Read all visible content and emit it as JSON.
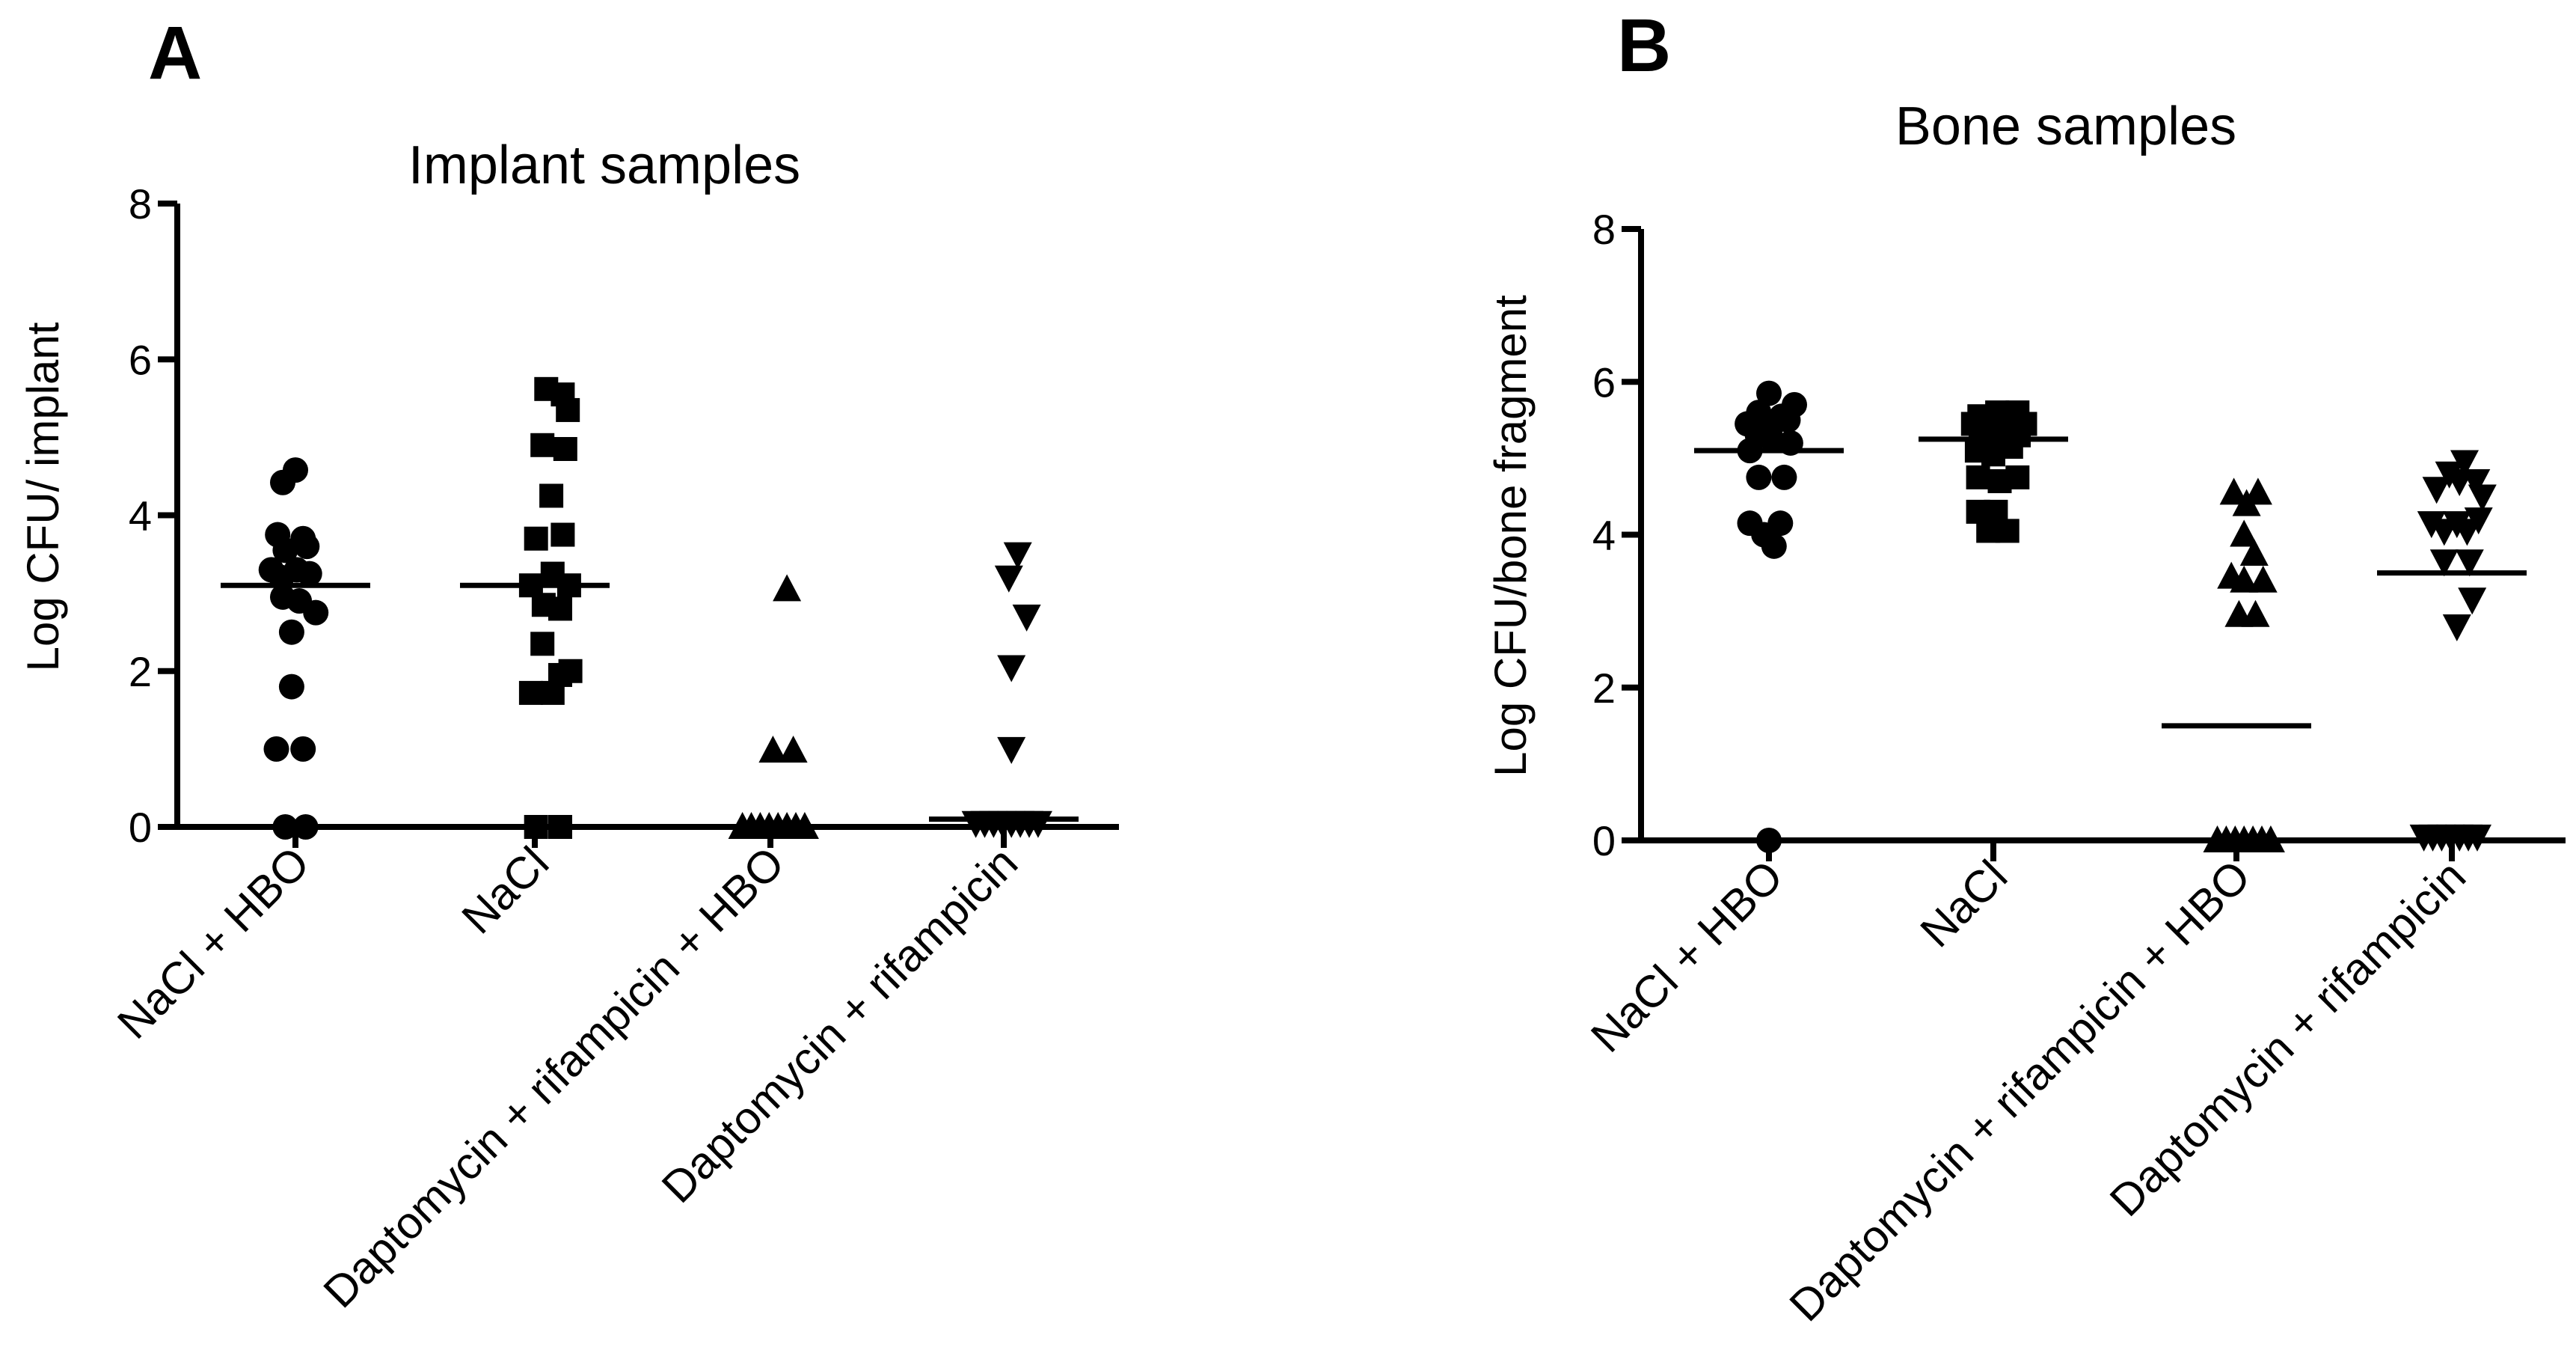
{
  "chart_data": [
    {
      "type": "scatter",
      "panel": "A",
      "title": "Implant samples",
      "xlabel": "",
      "ylabel": "Log CFU/ implant",
      "ylim": [
        0,
        8
      ],
      "yticks": [
        0,
        2,
        4,
        6,
        8
      ],
      "grid": false,
      "categories": [
        "NaCl + HBO",
        "NaCl",
        "Daptomycin + rifampicin + HBO",
        "Daptomycin + rifampicin"
      ],
      "series": [
        {
          "name": "NaCl + HBO",
          "marker": "circle",
          "mean": 3.1,
          "points": [
            {
              "dx": 0,
              "y": 4.58
            },
            {
              "dx": -0.5,
              "y": 4.42
            },
            {
              "dx": -0.7,
              "y": 3.75
            },
            {
              "dx": 0.3,
              "y": 3.7
            },
            {
              "dx": -0.4,
              "y": 3.55
            },
            {
              "dx": 0.45,
              "y": 3.6
            },
            {
              "dx": -0.95,
              "y": 3.3
            },
            {
              "dx": -0.55,
              "y": 3.2
            },
            {
              "dx": 0.05,
              "y": 3.3
            },
            {
              "dx": 0.55,
              "y": 3.25
            },
            {
              "dx": -0.5,
              "y": 2.95
            },
            {
              "dx": 0.15,
              "y": 2.9
            },
            {
              "dx": 0.8,
              "y": 2.75
            },
            {
              "dx": -0.15,
              "y": 2.5
            },
            {
              "dx": -0.15,
              "y": 1.8
            },
            {
              "dx": -0.75,
              "y": 1.0
            },
            {
              "dx": 0.3,
              "y": 1.0
            },
            {
              "dx": -0.4,
              "y": 0.0
            },
            {
              "dx": 0.4,
              "y": 0.0
            }
          ]
        },
        {
          "name": "NaCl",
          "marker": "square",
          "mean": 3.1,
          "points": [
            {
              "dx": 0.45,
              "y": 5.62
            },
            {
              "dx": 1.1,
              "y": 5.55
            },
            {
              "dx": 1.3,
              "y": 5.35
            },
            {
              "dx": 0.3,
              "y": 4.9
            },
            {
              "dx": 1.2,
              "y": 4.85
            },
            {
              "dx": 0.65,
              "y": 4.25
            },
            {
              "dx": 0.05,
              "y": 3.7
            },
            {
              "dx": 1.1,
              "y": 3.75
            },
            {
              "dx": -0.15,
              "y": 3.1
            },
            {
              "dx": 0.7,
              "y": 3.25
            },
            {
              "dx": 1.35,
              "y": 3.1
            },
            {
              "dx": 0.35,
              "y": 2.85
            },
            {
              "dx": 1.0,
              "y": 2.8
            },
            {
              "dx": 0.3,
              "y": 2.35
            },
            {
              "dx": 1.4,
              "y": 2.0
            },
            {
              "dx": 1.0,
              "y": 1.95
            },
            {
              "dx": -0.15,
              "y": 1.72
            },
            {
              "dx": 0.7,
              "y": 1.72
            },
            {
              "dx": 0.05,
              "y": 0.0
            },
            {
              "dx": 1.0,
              "y": 0.0
            }
          ]
        },
        {
          "name": "Daptomycin + rifampicin + HBO",
          "marker": "triangle-up",
          "mean": 0,
          "points": [
            {
              "dx": 0.65,
              "y": 3.05
            },
            {
              "dx": 0.1,
              "y": 0.98
            },
            {
              "dx": 0.9,
              "y": 0.98
            },
            {
              "dx": -1.1,
              "y": 0.0
            },
            {
              "dx": -0.75,
              "y": 0.0
            },
            {
              "dx": -0.4,
              "y": 0.0
            },
            {
              "dx": -0.05,
              "y": 0.0
            },
            {
              "dx": 0.3,
              "y": 0.0
            },
            {
              "dx": 0.65,
              "y": 0.0
            },
            {
              "dx": 1.0,
              "y": 0.0
            },
            {
              "dx": 1.35,
              "y": 0.0
            }
          ]
        },
        {
          "name": "Daptomycin + rifampicin",
          "marker": "triangle-down",
          "mean": 0.1,
          "points": [
            {
              "dx": 0.55,
              "y": 3.5
            },
            {
              "dx": 0.2,
              "y": 3.2
            },
            {
              "dx": 0.9,
              "y": 2.7
            },
            {
              "dx": 0.3,
              "y": 2.05
            },
            {
              "dx": 0.3,
              "y": 1.0
            },
            {
              "dx": -1.1,
              "y": 0.05
            },
            {
              "dx": -0.75,
              "y": 0.05
            },
            {
              "dx": -0.4,
              "y": 0.05
            },
            {
              "dx": -0.05,
              "y": 0.05
            },
            {
              "dx": 0.3,
              "y": 0.05
            },
            {
              "dx": 0.65,
              "y": 0.05
            },
            {
              "dx": 1.0,
              "y": 0.05
            },
            {
              "dx": 1.35,
              "y": 0.05
            }
          ]
        }
      ]
    },
    {
      "type": "scatter",
      "panel": "B",
      "title": "Bone samples",
      "xlabel": "",
      "ylabel": "Log CFU/bone fragment",
      "ylim": [
        0,
        8
      ],
      "yticks": [
        0,
        2,
        4,
        6,
        8
      ],
      "grid": false,
      "categories": [
        "NaCl + HBO",
        "NaCl",
        "Daptomycin + rifampicin + HBO",
        "Daptomycin + rifampicin"
      ],
      "series": [
        {
          "name": "NaCl + HBO",
          "marker": "circle",
          "mean": 5.1,
          "points": [
            {
              "dx": 0.0,
              "y": 5.85
            },
            {
              "dx": 1.0,
              "y": 5.7
            },
            {
              "dx": -0.4,
              "y": 5.6
            },
            {
              "dx": 0.5,
              "y": 5.55
            },
            {
              "dx": -0.85,
              "y": 5.45
            },
            {
              "dx": 0.15,
              "y": 5.45
            },
            {
              "dx": 0.75,
              "y": 5.5
            },
            {
              "dx": -0.45,
              "y": 5.3
            },
            {
              "dx": 0.1,
              "y": 5.25
            },
            {
              "dx": 0.85,
              "y": 5.2
            },
            {
              "dx": -0.75,
              "y": 5.1
            },
            {
              "dx": -0.4,
              "y": 4.75
            },
            {
              "dx": 0.6,
              "y": 4.75
            },
            {
              "dx": -0.75,
              "y": 4.15
            },
            {
              "dx": 0.45,
              "y": 4.15
            },
            {
              "dx": -0.2,
              "y": 4.0
            },
            {
              "dx": 0.2,
              "y": 3.85
            },
            {
              "dx": 0.0,
              "y": 0.0
            }
          ]
        },
        {
          "name": "NaCl",
          "marker": "square",
          "mean": 5.25,
          "points": [
            {
              "dx": -0.55,
              "y": 5.55
            },
            {
              "dx": 0.15,
              "y": 5.6
            },
            {
              "dx": 0.95,
              "y": 5.6
            },
            {
              "dx": -0.8,
              "y": 5.45
            },
            {
              "dx": -0.2,
              "y": 5.45
            },
            {
              "dx": 0.45,
              "y": 5.45
            },
            {
              "dx": 1.25,
              "y": 5.45
            },
            {
              "dx": -0.5,
              "y": 5.3
            },
            {
              "dx": 0.2,
              "y": 5.25
            },
            {
              "dx": 1.0,
              "y": 5.3
            },
            {
              "dx": -0.65,
              "y": 5.1
            },
            {
              "dx": 0.0,
              "y": 5.05
            },
            {
              "dx": 0.7,
              "y": 5.15
            },
            {
              "dx": -0.6,
              "y": 4.75
            },
            {
              "dx": 0.25,
              "y": 4.7
            },
            {
              "dx": 0.95,
              "y": 4.75
            },
            {
              "dx": -0.6,
              "y": 4.3
            },
            {
              "dx": 0.1,
              "y": 4.3
            },
            {
              "dx": -0.2,
              "y": 4.05
            },
            {
              "dx": 0.55,
              "y": 4.05
            }
          ]
        },
        {
          "name": "Daptomycin + rifampicin + HBO",
          "marker": "triangle-up",
          "mean": 1.5,
          "points": [
            {
              "dx": -0.1,
              "y": 4.55
            },
            {
              "dx": 0.85,
              "y": 4.55
            },
            {
              "dx": 0.4,
              "y": 4.4
            },
            {
              "dx": 0.3,
              "y": 4.0
            },
            {
              "dx": 0.7,
              "y": 3.75
            },
            {
              "dx": -0.2,
              "y": 3.45
            },
            {
              "dx": 0.3,
              "y": 3.4
            },
            {
              "dx": 1.05,
              "y": 3.4
            },
            {
              "dx": 0.1,
              "y": 2.95
            },
            {
              "dx": 0.75,
              "y": 2.95
            },
            {
              "dx": -0.75,
              "y": 0.0
            },
            {
              "dx": -0.4,
              "y": 0.0
            },
            {
              "dx": -0.05,
              "y": 0.0
            },
            {
              "dx": 0.3,
              "y": 0.0
            },
            {
              "dx": 0.65,
              "y": 0.0
            },
            {
              "dx": 1.0,
              "y": 0.0
            },
            {
              "dx": 1.35,
              "y": 0.0
            }
          ]
        },
        {
          "name": "Daptomycin + rifampicin",
          "marker": "triangle-down",
          "mean": 3.5,
          "points": [
            {
              "dx": 0.5,
              "y": 4.95
            },
            {
              "dx": -0.1,
              "y": 4.8
            },
            {
              "dx": 0.3,
              "y": 4.7
            },
            {
              "dx": 0.95,
              "y": 4.7
            },
            {
              "dx": -0.6,
              "y": 4.6
            },
            {
              "dx": 1.2,
              "y": 4.5
            },
            {
              "dx": -0.8,
              "y": 4.15
            },
            {
              "dx": -0.3,
              "y": 4.05
            },
            {
              "dx": 0.2,
              "y": 4.15
            },
            {
              "dx": 0.6,
              "y": 4.05
            },
            {
              "dx": 1.05,
              "y": 4.2
            },
            {
              "dx": -0.3,
              "y": 3.65
            },
            {
              "dx": 0.7,
              "y": 3.65
            },
            {
              "dx": 0.8,
              "y": 3.15
            },
            {
              "dx": 0.2,
              "y": 2.8
            },
            {
              "dx": -1.1,
              "y": 0.05
            },
            {
              "dx": -0.75,
              "y": 0.05
            },
            {
              "dx": -0.4,
              "y": 0.05
            },
            {
              "dx": -0.05,
              "y": 0.05
            },
            {
              "dx": 0.3,
              "y": 0.05
            },
            {
              "dx": 0.65,
              "y": 0.05
            },
            {
              "dx": 1.0,
              "y": 0.05
            }
          ]
        }
      ]
    }
  ]
}
